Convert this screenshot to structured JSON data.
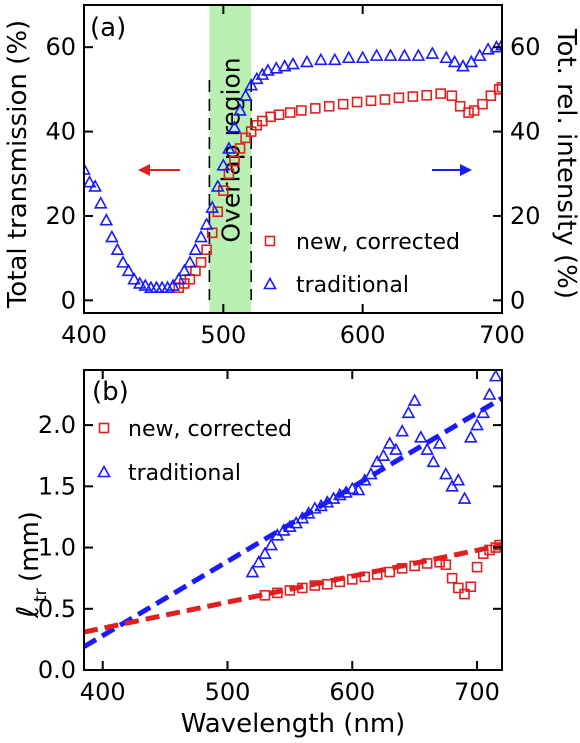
{
  "chart_data": [
    {
      "panel": "(a)",
      "type": "scatter",
      "xlabel": "",
      "ylabel_left": "Total transmission (%)",
      "ylabel_right": "Tot. rel. intensity (%)",
      "xlim": [
        400,
        700
      ],
      "ylim": [
        -3,
        70
      ],
      "x_ticks": [
        "400",
        "500",
        "600",
        "700"
      ],
      "y_ticks_left": [
        "0",
        "20",
        "40",
        "60"
      ],
      "y_ticks_right": [
        "0",
        "20",
        "40",
        "60"
      ],
      "overlap_region": {
        "label": "Overlap region",
        "x_range": [
          490,
          520
        ],
        "color": "#b7f0b1"
      },
      "series": [
        {
          "name": "new, corrected",
          "marker": "square",
          "color": "#e02020",
          "x": [
            468,
            472,
            476,
            480,
            484,
            488,
            492,
            496,
            500,
            504,
            508,
            512,
            516,
            520,
            524,
            528,
            534,
            540,
            548,
            556,
            566,
            576,
            586,
            596,
            606,
            616,
            626,
            636,
            646,
            656,
            664,
            670,
            676,
            680,
            686,
            692,
            698,
            700
          ],
          "y": [
            3,
            4,
            5,
            7,
            9,
            12,
            16,
            21,
            26,
            30,
            33,
            36,
            38.5,
            40,
            41.5,
            42.5,
            43.5,
            44,
            44.5,
            45,
            45.5,
            46,
            46.5,
            47,
            47.3,
            47.6,
            48,
            48.3,
            48.6,
            49,
            48.5,
            46,
            44.5,
            45,
            46.5,
            48.5,
            50,
            50.5
          ]
        },
        {
          "name": "traditional",
          "marker": "triangle",
          "color": "#1a1aff",
          "x": [
            400,
            404,
            408,
            412,
            416,
            420,
            424,
            428,
            432,
            436,
            440,
            444,
            448,
            452,
            456,
            460,
            464,
            468,
            472,
            476,
            480,
            484,
            488,
            492,
            496,
            500,
            504,
            508,
            512,
            516,
            520,
            524,
            528,
            532,
            538,
            544,
            550,
            560,
            570,
            580,
            590,
            600,
            610,
            620,
            630,
            640,
            650,
            660,
            666,
            672,
            678,
            684,
            690,
            696,
            700
          ],
          "y": [
            31,
            28,
            27,
            23,
            19,
            15,
            12,
            9,
            7,
            5,
            4,
            3.5,
            3,
            3,
            3,
            3,
            3.5,
            5,
            7,
            9,
            12,
            15,
            18,
            22,
            27,
            32,
            36,
            41,
            45,
            48.5,
            51,
            52.5,
            53.5,
            54.5,
            55,
            55.5,
            56,
            56.5,
            57,
            57,
            57.5,
            57.5,
            58,
            58,
            58,
            58,
            58.5,
            57.5,
            56.5,
            55.5,
            56.5,
            58,
            59.5,
            60,
            60.5
          ]
        }
      ],
      "arrows": [
        {
          "direction": "left",
          "color": "#e02020"
        },
        {
          "direction": "right",
          "color": "#1a1aff"
        }
      ],
      "legend_position": "bottom-right"
    },
    {
      "panel": "(b)",
      "type": "scatter",
      "xlabel": "Wavelength (nm)",
      "ylabel": "ℓtr (mm)",
      "ylabel_main": "ℓ",
      "ylabel_sub": "tr",
      "ylabel_unit": "(mm)",
      "xlim": [
        385,
        720
      ],
      "ylim": [
        0,
        2.45
      ],
      "x_ticks": [
        "400",
        "500",
        "600",
        "700"
      ],
      "y_ticks": [
        "0.0",
        "0.5",
        "1.0",
        "1.5",
        "2.0"
      ],
      "series": [
        {
          "name": "new, corrected",
          "marker": "square",
          "color": "#e02020",
          "x": [
            530,
            540,
            550,
            560,
            570,
            580,
            590,
            600,
            610,
            620,
            630,
            640,
            650,
            660,
            670,
            675,
            680,
            685,
            690,
            695,
            700,
            705,
            710,
            715,
            718
          ],
          "y": [
            0.61,
            0.63,
            0.65,
            0.67,
            0.69,
            0.7,
            0.72,
            0.74,
            0.76,
            0.78,
            0.8,
            0.83,
            0.85,
            0.87,
            0.88,
            0.86,
            0.75,
            0.67,
            0.62,
            0.68,
            0.84,
            0.95,
            0.98,
            1.0,
            1.02
          ]
        },
        {
          "name": "traditional",
          "marker": "triangle",
          "color": "#1a1aff",
          "x": [
            520,
            525,
            530,
            535,
            540,
            545,
            550,
            555,
            560,
            565,
            570,
            575,
            580,
            585,
            590,
            595,
            600,
            605,
            610,
            615,
            620,
            625,
            630,
            635,
            640,
            645,
            650,
            655,
            660,
            665,
            670,
            675,
            680,
            685,
            690,
            695,
            700,
            705,
            710,
            715
          ],
          "y": [
            0.8,
            0.88,
            0.95,
            1.02,
            1.1,
            1.14,
            1.17,
            1.2,
            1.24,
            1.28,
            1.32,
            1.34,
            1.37,
            1.4,
            1.43,
            1.45,
            1.48,
            1.47,
            1.55,
            1.6,
            1.7,
            1.75,
            1.85,
            1.8,
            1.95,
            2.1,
            2.2,
            1.9,
            1.8,
            1.7,
            1.85,
            1.6,
            1.5,
            1.55,
            1.4,
            1.9,
            2.0,
            2.1,
            2.25,
            2.4
          ]
        }
      ],
      "fits": [
        {
          "series": "traditional",
          "x": [
            385,
            720
          ],
          "y": [
            0.19,
            2.22
          ],
          "style": "dashed",
          "color": "#1a1aff"
        },
        {
          "series": "new, corrected",
          "x": [
            385,
            720
          ],
          "y": [
            0.31,
            1.02
          ],
          "style": "dashed",
          "color": "#e02020"
        }
      ],
      "legend_position": "top-left"
    }
  ]
}
